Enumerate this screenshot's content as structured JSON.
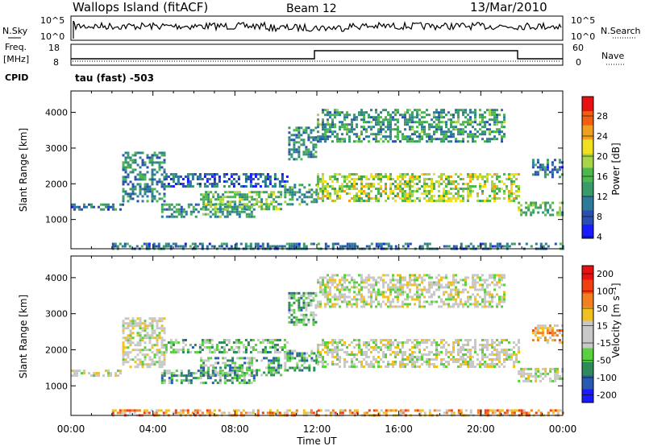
{
  "header": {
    "station": "Wallops Island (fitACF)",
    "beam": "Beam 12",
    "date": "13/Mar/2010"
  },
  "summary_panels": {
    "nsky_label": "N.Sky",
    "nsearch_label": "N.Search",
    "nsky_ticks": [
      "10^5",
      "10^0"
    ],
    "nsearch_ticks": [
      "10^5",
      "10^0"
    ],
    "freq_label_line1": "Freq.",
    "freq_label_line2": "[MHz]",
    "freq_ticks": [
      "18",
      "8"
    ],
    "nave_label": "Nave",
    "nave_ticks": [
      "60",
      "0"
    ],
    "cpid_label": "CPID",
    "cpid_value": "tau (fast) -503"
  },
  "colors": {
    "power_scale": [
      "#1a1aff",
      "#2a4fb0",
      "#2e7a9a",
      "#3a9a6a",
      "#4db84d",
      "#a8d44a",
      "#f0e020",
      "#f0a020",
      "#f06010",
      "#e81010"
    ],
    "velocity_scale": [
      "#1a1aff",
      "#2a5ab0",
      "#2e8a5a",
      "#5ad040",
      "#c8c8c8",
      "#c8c8c8",
      "#f0c020",
      "#f08020",
      "#f04010",
      "#e81010"
    ]
  },
  "chart_data": [
    {
      "type": "heatmap",
      "name": "power",
      "ylabel": "Slant Range [km]",
      "xlabel": "",
      "x_ticks": [
        "00:00",
        "04:00",
        "08:00",
        "12:00",
        "16:00",
        "20:00",
        "00:00"
      ],
      "xlim": [
        0,
        24
      ],
      "ylim": [
        180,
        4600
      ],
      "y_ticks": [
        1000,
        2000,
        3000,
        4000
      ],
      "colorbar_label": "Power [dB]",
      "colorbar_ticks": [
        "28",
        "24",
        "20",
        "16",
        "12",
        "8",
        "4"
      ],
      "colorbar_range": [
        0,
        30
      ],
      "echo_regions": [
        {
          "t_start": 0.0,
          "t_end": 2.5,
          "r_start": 1250,
          "r_end": 1450,
          "level": 0.25
        },
        {
          "t_start": 2.5,
          "t_end": 4.6,
          "r_start": 1500,
          "r_end": 2900,
          "level": 0.3
        },
        {
          "t_start": 4.4,
          "t_end": 9.0,
          "r_start": 1050,
          "r_end": 1450,
          "level": 0.35
        },
        {
          "t_start": 6.3,
          "t_end": 10.2,
          "r_start": 1300,
          "r_end": 1800,
          "level": 0.45
        },
        {
          "t_start": 4.6,
          "t_end": 10.6,
          "r_start": 1900,
          "r_end": 2300,
          "level": 0.2
        },
        {
          "t_start": 10.4,
          "t_end": 12.0,
          "r_start": 1400,
          "r_end": 2000,
          "level": 0.35
        },
        {
          "t_start": 10.6,
          "t_end": 12.0,
          "r_start": 2700,
          "r_end": 3600,
          "level": 0.3
        },
        {
          "t_start": 12.0,
          "t_end": 21.8,
          "r_start": 1500,
          "r_end": 2300,
          "level": 0.55
        },
        {
          "t_start": 12.0,
          "t_end": 21.2,
          "r_start": 3200,
          "r_end": 4100,
          "level": 0.35
        },
        {
          "t_start": 21.8,
          "t_end": 24.0,
          "r_start": 1100,
          "r_end": 1500,
          "level": 0.45
        },
        {
          "t_start": 22.5,
          "t_end": 24.0,
          "r_start": 2200,
          "r_end": 2700,
          "level": 0.25
        },
        {
          "t_start": 2.0,
          "t_end": 24.0,
          "r_start": 200,
          "r_end": 350,
          "level": 0.25
        }
      ]
    },
    {
      "type": "heatmap",
      "name": "velocity",
      "ylabel": "Slant Range [km]",
      "xlabel": "Time UT",
      "x_ticks": [
        "00:00",
        "04:00",
        "08:00",
        "12:00",
        "16:00",
        "20:00",
        "00:00"
      ],
      "xlim": [
        0,
        24
      ],
      "ylim": [
        180,
        4600
      ],
      "y_ticks": [
        1000,
        2000,
        3000,
        4000
      ],
      "colorbar_label": "Velocity [m s⁻¹]",
      "colorbar_ticks": [
        "200",
        "100",
        "50",
        "15",
        "-15",
        "-50",
        "-100",
        "-200"
      ],
      "colorbar_range": [
        -250,
        250
      ],
      "echo_regions": [
        {
          "t_start": 0.0,
          "t_end": 2.5,
          "r_start": 1250,
          "r_end": 1450,
          "level": 0.5
        },
        {
          "t_start": 2.5,
          "t_end": 4.6,
          "r_start": 1500,
          "r_end": 2900,
          "level": 0.5
        },
        {
          "t_start": 4.4,
          "t_end": 9.0,
          "r_start": 1050,
          "r_end": 1450,
          "level": 0.32
        },
        {
          "t_start": 6.3,
          "t_end": 10.2,
          "r_start": 1300,
          "r_end": 1800,
          "level": 0.32
        },
        {
          "t_start": 4.6,
          "t_end": 10.6,
          "r_start": 1900,
          "r_end": 2300,
          "level": 0.35
        },
        {
          "t_start": 10.4,
          "t_end": 12.0,
          "r_start": 1400,
          "r_end": 2000,
          "level": 0.33
        },
        {
          "t_start": 10.6,
          "t_end": 12.0,
          "r_start": 2700,
          "r_end": 3600,
          "level": 0.35
        },
        {
          "t_start": 12.0,
          "t_end": 21.8,
          "r_start": 1500,
          "r_end": 2300,
          "level": 0.5
        },
        {
          "t_start": 12.0,
          "t_end": 21.2,
          "r_start": 3200,
          "r_end": 4100,
          "level": 0.5
        },
        {
          "t_start": 21.8,
          "t_end": 24.0,
          "r_start": 1100,
          "r_end": 1500,
          "level": 0.5
        },
        {
          "t_start": 22.5,
          "t_end": 24.0,
          "r_start": 2200,
          "r_end": 2700,
          "level": 0.65
        },
        {
          "t_start": 2.0,
          "t_end": 24.0,
          "r_start": 200,
          "r_end": 350,
          "level": 0.7
        }
      ]
    }
  ]
}
